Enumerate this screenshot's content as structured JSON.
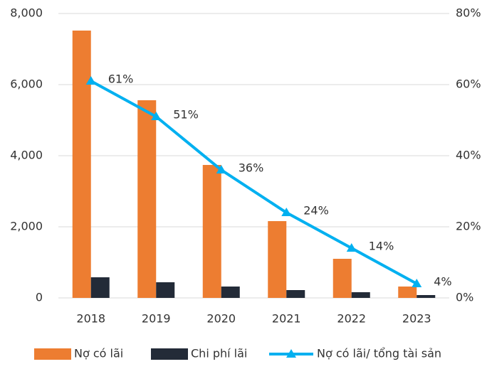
{
  "chart_data": {
    "type": "bar",
    "categories": [
      "2018",
      "2019",
      "2020",
      "2021",
      "2022",
      "2023"
    ],
    "series": [
      {
        "name": "Nợ có lãi",
        "color": "#ed7d31",
        "values": [
          7520,
          5560,
          3740,
          2160,
          1100,
          320
        ]
      },
      {
        "name": "Chi phí lãi",
        "color": "#232b38",
        "values": [
          580,
          440,
          320,
          220,
          160,
          80
        ]
      },
      {
        "name": "Nợ có lãi/ tổng tài sản",
        "color": "#00b0f0",
        "type": "line",
        "axis": "y2",
        "values": [
          61,
          51,
          36,
          24,
          14,
          4
        ],
        "value_labels": [
          "61%",
          "51%",
          "36%",
          "24%",
          "14%",
          "4%"
        ]
      }
    ],
    "ylim": [
      0,
      8000
    ],
    "yticks": [
      {
        "value": 0,
        "label": "0"
      },
      {
        "value": 2000,
        "label": "2,000"
      },
      {
        "value": 4000,
        "label": "4,000"
      },
      {
        "value": 6000,
        "label": "6,000"
      },
      {
        "value": 8000,
        "label": "8,000"
      }
    ],
    "y2lim": [
      0,
      80
    ],
    "y2ticks": [
      {
        "value": 0,
        "label": "0%"
      },
      {
        "value": 20,
        "label": "20%"
      },
      {
        "value": 40,
        "label": "40%"
      },
      {
        "value": 60,
        "label": "60%"
      },
      {
        "value": 80,
        "label": "80%"
      }
    ],
    "grid": true,
    "legend": "bottom"
  }
}
